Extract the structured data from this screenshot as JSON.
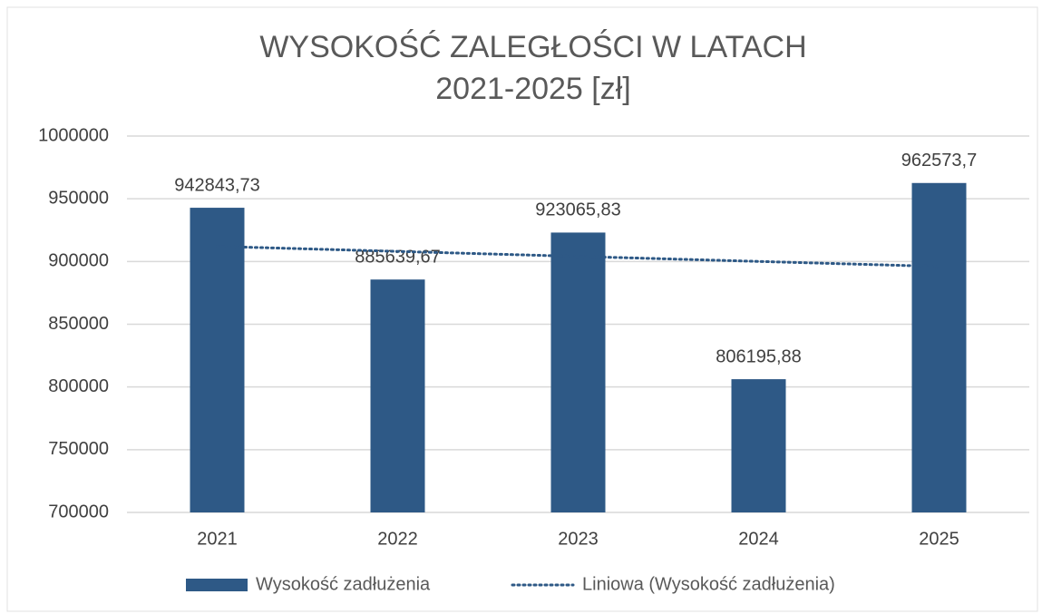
{
  "chart_data": {
    "type": "bar",
    "title": [
      "WYSOKOŚĆ ZALEGŁOŚCI W LATACH",
      "2021-2025 [zł]"
    ],
    "categories": [
      "2021",
      "2022",
      "2023",
      "2024",
      "2025"
    ],
    "series": [
      {
        "name": "Wysokość zadłużenia",
        "color": "#2e5986",
        "values": [
          942843.73,
          885639.67,
          923065.83,
          806195.88,
          962573.7
        ],
        "value_labels": [
          "942843,73",
          "885639,67",
          "923065,83",
          "806195,88",
          "962573,7"
        ]
      }
    ],
    "trendline": {
      "name": "Liniowa (Wysokość zadłużenia)",
      "kind": "linear",
      "color": "#2e5986",
      "style": "dotted"
    },
    "ylim": [
      700000,
      1000000
    ],
    "yticks": [
      700000,
      750000,
      800000,
      850000,
      900000,
      950000,
      1000000
    ],
    "grid": true,
    "legend": "bottom"
  }
}
